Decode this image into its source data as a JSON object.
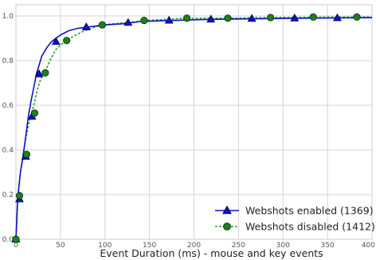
{
  "chart_data": {
    "type": "line",
    "title": "",
    "xlabel": "Event Duration (ms) - mouse and key events",
    "ylabel": "",
    "xlim": [
      0,
      400
    ],
    "ylim": [
      0,
      1.05
    ],
    "x_ticks": [
      0,
      50,
      100,
      150,
      200,
      250,
      300,
      350,
      400
    ],
    "y_ticks": [
      0.0,
      0.2,
      0.4,
      0.6,
      0.8,
      1.0
    ],
    "x_tick_labels": [
      "0",
      "50",
      "100",
      "150",
      "200",
      "250",
      "300",
      "350",
      "400"
    ],
    "y_tick_labels": [
      "0.0",
      "0.2",
      "0.4",
      "0.6",
      "0.8",
      "1.0"
    ],
    "grid": true,
    "legend_position": "lower-right",
    "series": [
      {
        "name": "Webshots enabled (1369)",
        "color": "#1010cc",
        "line_style": "solid",
        "marker": "triangle",
        "x": [
          0,
          2,
          5,
          8,
          11,
          14,
          17,
          20,
          23,
          26,
          29,
          32,
          35,
          40,
          45,
          50,
          55,
          60,
          70,
          80,
          90,
          100,
          120,
          140,
          160,
          180,
          200,
          240,
          280,
          320,
          360,
          400
        ],
        "y": [
          0.0,
          0.18,
          0.3,
          0.37,
          0.46,
          0.55,
          0.62,
          0.68,
          0.74,
          0.78,
          0.82,
          0.84,
          0.86,
          0.885,
          0.9,
          0.915,
          0.925,
          0.935,
          0.945,
          0.95,
          0.955,
          0.96,
          0.965,
          0.975,
          0.978,
          0.98,
          0.983,
          0.986,
          0.988,
          0.99,
          0.991,
          0.992
        ],
        "markers_x": [
          0,
          4,
          11,
          18,
          26,
          45,
          79,
          126,
          172,
          219,
          265,
          313,
          361
        ],
        "markers_y": [
          0.0,
          0.18,
          0.37,
          0.55,
          0.74,
          0.885,
          0.95,
          0.97,
          0.98,
          0.985,
          0.988,
          0.99,
          0.991
        ]
      },
      {
        "name": "Webshots disabled (1412)",
        "color": "#2e9e2e",
        "marker_fill": "#1e7f1e",
        "line_style": "dashed",
        "marker": "circle",
        "x": [
          0,
          2,
          5,
          8,
          11,
          14,
          17,
          20,
          24,
          28,
          33,
          38,
          45,
          50,
          57,
          65,
          75,
          85,
          97,
          110,
          130,
          145,
          170,
          190,
          215,
          240,
          280,
          320,
          360,
          400
        ],
        "y": [
          0.0,
          0.19,
          0.3,
          0.38,
          0.45,
          0.51,
          0.56,
          0.6,
          0.67,
          0.72,
          0.75,
          0.8,
          0.85,
          0.87,
          0.89,
          0.91,
          0.93,
          0.945,
          0.96,
          0.965,
          0.972,
          0.98,
          0.985,
          0.99,
          0.99,
          0.99,
          0.993,
          0.994,
          0.995,
          0.995
        ],
        "markers_x": [
          0,
          4,
          12,
          21,
          33,
          57,
          97,
          144,
          192,
          238,
          286,
          334,
          383
        ],
        "markers_y": [
          0.0,
          0.195,
          0.38,
          0.565,
          0.745,
          0.89,
          0.96,
          0.98,
          0.99,
          0.99,
          0.993,
          0.995,
          0.995
        ]
      }
    ]
  }
}
